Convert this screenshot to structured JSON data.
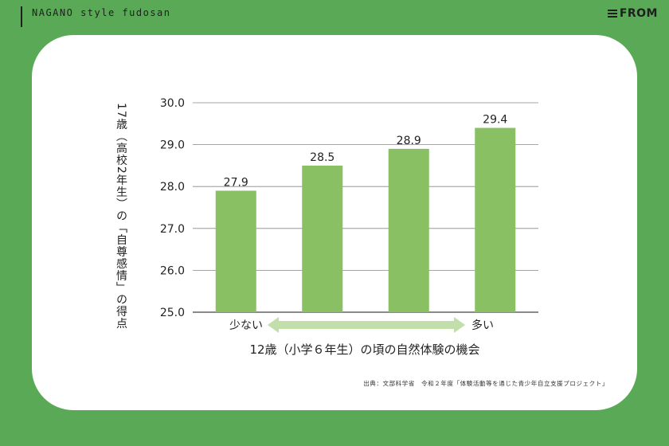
{
  "header": {
    "site_name": "NAGANO style fudosan",
    "logo_text": "FROM"
  },
  "chart_data": {
    "type": "bar",
    "categories": [
      "",
      "",
      "",
      ""
    ],
    "values": [
      27.9,
      28.5,
      28.9,
      29.4
    ],
    "value_labels": [
      "27.9",
      "28.5",
      "28.9",
      "29.4"
    ],
    "ylabel": "17歳（高校2年生）の「自尊感情」の得点",
    "xlabel": "12歳（小学６年生）の頃の自然体験の機会",
    "x_arrow_left": "少ない",
    "x_arrow_right": "多い",
    "ylim": [
      25.0,
      30.0
    ],
    "yticks": [
      "25.0",
      "26.0",
      "27.0",
      "28.0",
      "29.0",
      "30.0"
    ],
    "grid": true,
    "bar_color": "#88c063",
    "arrow_color": "#c2deaa"
  },
  "source_note": "出典：文部科学省　令和２年度「体験活動等を通じた青少年自立支援プロジェクト」"
}
